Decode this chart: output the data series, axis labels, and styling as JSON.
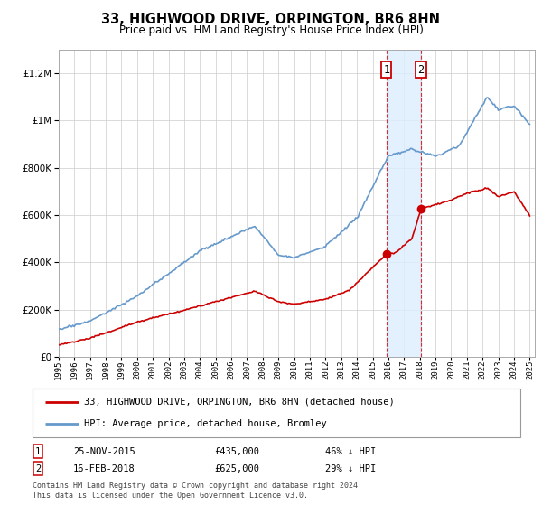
{
  "title": "33, HIGHWOOD DRIVE, ORPINGTON, BR6 8HN",
  "subtitle": "Price paid vs. HM Land Registry's House Price Index (HPI)",
  "legend_label_red": "33, HIGHWOOD DRIVE, ORPINGTON, BR6 8HN (detached house)",
  "legend_label_blue": "HPI: Average price, detached house, Bromley",
  "transaction1_date": "25-NOV-2015",
  "transaction1_price": 435000,
  "transaction1_pct": "46% ↓ HPI",
  "transaction2_date": "16-FEB-2018",
  "transaction2_price": 625000,
  "transaction2_pct": "29% ↓ HPI",
  "footnote": "Contains HM Land Registry data © Crown copyright and database right 2024.\nThis data is licensed under the Open Government Licence v3.0.",
  "ylim": [
    0,
    1300000
  ],
  "yticks": [
    0,
    200000,
    400000,
    600000,
    800000,
    1000000,
    1200000
  ],
  "red_color": "#cc0000",
  "blue_color": "#6699cc",
  "shade_color": "#ddeeff",
  "t1_year": 2015.875,
  "t2_year": 2018.083,
  "t1_price": 435000,
  "t2_price": 625000
}
